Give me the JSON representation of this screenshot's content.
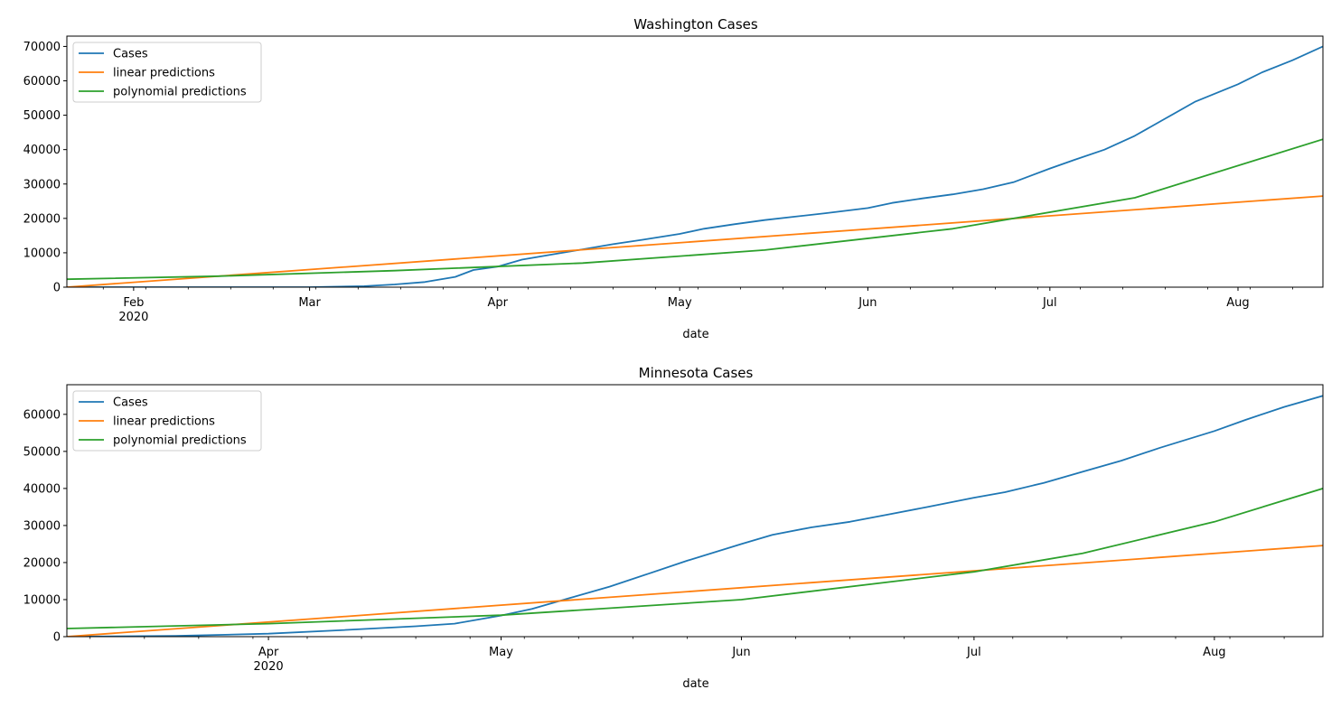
{
  "chart_data": [
    {
      "type": "line",
      "title": "Washington Cases",
      "xlabel": "date",
      "ylabel": "",
      "xlim": [
        "2020-01-21",
        "2020-08-15"
      ],
      "ylim": [
        0,
        73000
      ],
      "grid": false,
      "legend_position": "upper left",
      "yticks": [
        0,
        10000,
        20000,
        30000,
        40000,
        50000,
        60000,
        70000
      ],
      "ytick_labels": [
        "0",
        "10000",
        "20000",
        "30000",
        "40000",
        "50000",
        "60000",
        "70000"
      ],
      "xticks": [
        {
          "date": "2020-02-01",
          "label": "Feb",
          "sublabel": "2020"
        },
        {
          "date": "2020-03-01",
          "label": "Mar",
          "sublabel": ""
        },
        {
          "date": "2020-04-01",
          "label": "Apr",
          "sublabel": ""
        },
        {
          "date": "2020-05-01",
          "label": "May",
          "sublabel": ""
        },
        {
          "date": "2020-06-01",
          "label": "Jun",
          "sublabel": ""
        },
        {
          "date": "2020-07-01",
          "label": "Jul",
          "sublabel": ""
        },
        {
          "date": "2020-08-01",
          "label": "Aug",
          "sublabel": ""
        }
      ],
      "series": [
        {
          "name": "Cases",
          "color": "#1f77b4",
          "x": [
            "2020-01-21",
            "2020-02-15",
            "2020-03-01",
            "2020-03-10",
            "2020-03-15",
            "2020-03-20",
            "2020-03-25",
            "2020-03-28",
            "2020-04-01",
            "2020-04-05",
            "2020-04-10",
            "2020-04-15",
            "2020-04-20",
            "2020-04-25",
            "2020-05-01",
            "2020-05-05",
            "2020-05-10",
            "2020-05-15",
            "2020-05-20",
            "2020-05-25",
            "2020-06-01",
            "2020-06-05",
            "2020-06-10",
            "2020-06-15",
            "2020-06-20",
            "2020-06-25",
            "2020-07-01",
            "2020-07-05",
            "2020-07-10",
            "2020-07-15",
            "2020-07-20",
            "2020-07-25",
            "2020-08-01",
            "2020-08-05",
            "2020-08-10",
            "2020-08-15"
          ],
          "y": [
            0,
            0,
            0,
            300,
            800,
            1500,
            3000,
            5000,
            6000,
            8000,
            9500,
            11000,
            12500,
            13800,
            15500,
            17000,
            18300,
            19500,
            20500,
            21500,
            23000,
            24500,
            25800,
            27000,
            28500,
            30500,
            34500,
            37000,
            40000,
            44000,
            49000,
            54000,
            59000,
            62500,
            66000,
            70000
          ]
        },
        {
          "name": "linear predictions",
          "color": "#ff7f0e",
          "x": [
            "2020-01-21",
            "2020-08-15"
          ],
          "y": [
            0,
            26500
          ]
        },
        {
          "name": "polynomial predictions",
          "color": "#2ca02c",
          "x": [
            "2020-01-21",
            "2020-02-15",
            "2020-03-15",
            "2020-04-15",
            "2020-05-15",
            "2020-06-15",
            "2020-07-15",
            "2020-08-15"
          ],
          "y": [
            2300,
            3200,
            4800,
            7000,
            10800,
            17000,
            26000,
            43000
          ]
        }
      ]
    },
    {
      "type": "line",
      "title": "Minnesota Cases",
      "xlabel": "date",
      "ylabel": "",
      "xlim": [
        "2020-03-06",
        "2020-08-15"
      ],
      "ylim": [
        0,
        68000
      ],
      "grid": false,
      "legend_position": "upper left",
      "yticks": [
        0,
        10000,
        20000,
        30000,
        40000,
        50000,
        60000
      ],
      "ytick_labels": [
        "0",
        "10000",
        "20000",
        "30000",
        "40000",
        "50000",
        "60000"
      ],
      "xticks": [
        {
          "date": "2020-04-01",
          "label": "Apr",
          "sublabel": "2020"
        },
        {
          "date": "2020-05-01",
          "label": "May",
          "sublabel": ""
        },
        {
          "date": "2020-06-01",
          "label": "Jun",
          "sublabel": ""
        },
        {
          "date": "2020-07-01",
          "label": "Jul",
          "sublabel": ""
        },
        {
          "date": "2020-08-01",
          "label": "Aug",
          "sublabel": ""
        }
      ],
      "series": [
        {
          "name": "Cases",
          "color": "#1f77b4",
          "x": [
            "2020-03-06",
            "2020-03-20",
            "2020-04-01",
            "2020-04-10",
            "2020-04-20",
            "2020-04-25",
            "2020-05-01",
            "2020-05-05",
            "2020-05-10",
            "2020-05-15",
            "2020-05-20",
            "2020-05-25",
            "2020-06-01",
            "2020-06-05",
            "2020-06-10",
            "2020-06-15",
            "2020-06-20",
            "2020-06-25",
            "2020-07-01",
            "2020-07-05",
            "2020-07-10",
            "2020-07-15",
            "2020-07-20",
            "2020-07-25",
            "2020-08-01",
            "2020-08-05",
            "2020-08-10",
            "2020-08-15"
          ],
          "y": [
            0,
            200,
            800,
            1700,
            2800,
            3500,
            5700,
            7500,
            10500,
            13500,
            17000,
            20500,
            25000,
            27500,
            29500,
            31000,
            33000,
            35000,
            37500,
            39000,
            41500,
            44500,
            47500,
            51000,
            55500,
            58500,
            62000,
            65000
          ]
        },
        {
          "name": "linear predictions",
          "color": "#ff7f0e",
          "x": [
            "2020-03-06",
            "2020-08-15"
          ],
          "y": [
            0,
            24600
          ]
        },
        {
          "name": "polynomial predictions",
          "color": "#2ca02c",
          "x": [
            "2020-03-06",
            "2020-04-01",
            "2020-05-01",
            "2020-06-01",
            "2020-07-01",
            "2020-07-15",
            "2020-08-01",
            "2020-08-15"
          ],
          "y": [
            2200,
            3500,
            5800,
            10000,
            17500,
            22500,
            31000,
            40000
          ]
        }
      ]
    }
  ]
}
